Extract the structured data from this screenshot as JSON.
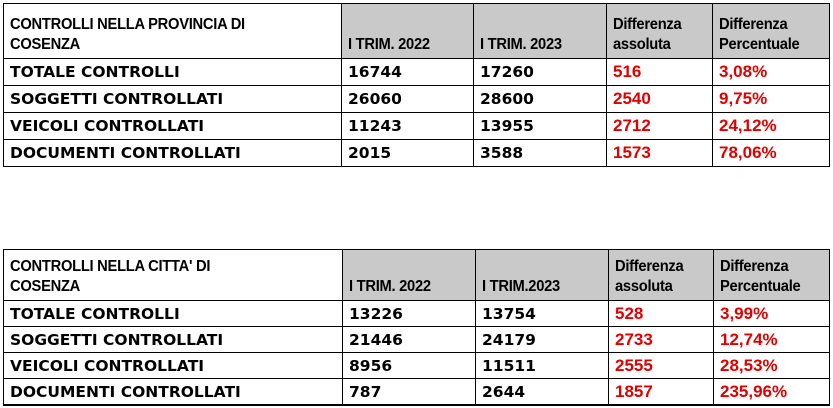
{
  "tables": [
    {
      "title_line1": "CONTROLLI NELLA PROVINCIA DI",
      "title_line2": "COSENZA",
      "headers": [
        "I TRIM. 2022",
        "I TRIM. 2023",
        "Differenza",
        "assoluta",
        "Differenza",
        "Percentuale"
      ],
      "rows": [
        [
          "TOTALE CONTROLLI",
          "16744",
          "17260",
          "516",
          "3,08%"
        ],
        [
          "SOGGETTI CONTROLLATI",
          "26060",
          "28600",
          "2540",
          "9,75%"
        ],
        [
          "VEICOLI CONTROLLATI",
          "11243",
          "13955",
          "2712",
          "24,12%"
        ],
        [
          "DOCUMENTI CONTROLLATI",
          "2015",
          "3588",
          "1573",
          "78,06%"
        ]
      ]
    },
    {
      "title_line1": "CONTROLLI NELLA CITTA' DI",
      "title_line2": "COSENZA",
      "headers": [
        "I TRIM. 2022",
        "I TRIM.2023",
        "Differenza",
        "assoluta",
        "Differenza",
        "Percentuale"
      ],
      "rows": [
        [
          "TOTALE CONTROLLI",
          "13226",
          "13754",
          "528",
          "3,99%"
        ],
        [
          "SOGGETTI CONTROLLATI",
          "21446",
          "24179",
          "2733",
          "12,74%"
        ],
        [
          "VEICOLI CONTROLLATI",
          "8956",
          "11511",
          "2555",
          "28,53%"
        ],
        [
          "DOCUMENTI CONTROLLATI",
          "787",
          "2644",
          "1857",
          "235,96%"
        ]
      ]
    }
  ],
  "colors": {
    "header_bg": "#c9c9c9",
    "difference_text": "#e00000"
  }
}
